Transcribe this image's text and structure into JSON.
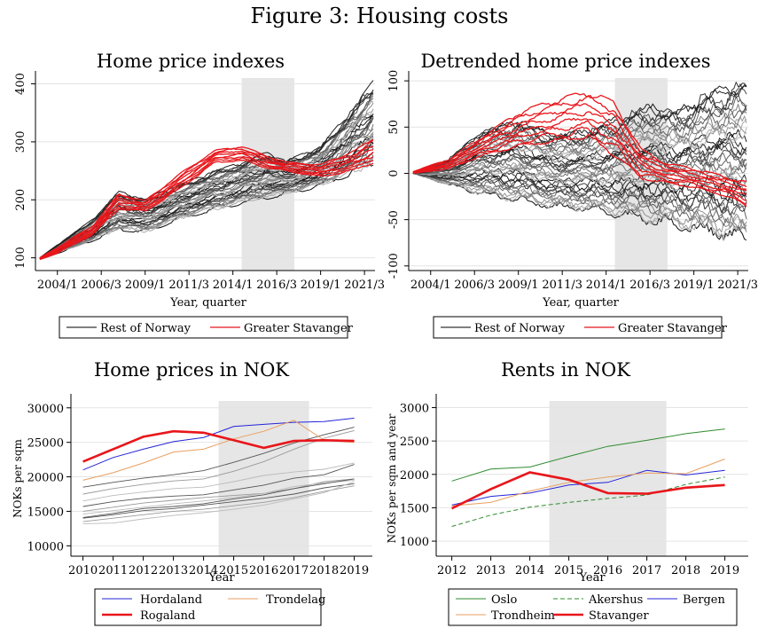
{
  "figure_title": "Figure 3:  Housing costs",
  "colors": {
    "red": "#e8161b",
    "black": "#000000",
    "grey": "#888888",
    "green": "#2e8b2e",
    "blue": "#2424d8",
    "orange": "#e8a060",
    "shade": "#e6e6e6"
  },
  "chart_data": [
    {
      "id": "p1",
      "type": "line",
      "title": "Home price indexes",
      "xlabel": "Year, quarter",
      "ylabel": "",
      "x_ticks": [
        "2004/1",
        "2006/3",
        "2009/1",
        "2011/3",
        "2014/1",
        "2016/3",
        "2019/1",
        "2021/3"
      ],
      "xlim": [
        2002.75,
        2022.1
      ],
      "y_ticks": [
        100,
        200,
        300,
        400
      ],
      "ylim": [
        78,
        410
      ],
      "shaded_period": [
        2014.5,
        2017.5
      ],
      "grid": true,
      "legend": [
        "Rest of Norway",
        "Greater Stavanger"
      ],
      "series_groups": [
        {
          "name": "Rest of Norway",
          "color": "black",
          "count": 40,
          "x": [
            2003,
            2004,
            2006,
            2007.5,
            2009,
            2011,
            2013,
            2014.5,
            2016,
            2017,
            2019,
            2021,
            2022
          ],
          "low": [
            98,
            108,
            130,
            150,
            145,
            168,
            185,
            195,
            205,
            210,
            225,
            250,
            265
          ],
          "high": [
            100,
            122,
            165,
            212,
            200,
            225,
            248,
            262,
            280,
            265,
            290,
            360,
            400
          ]
        },
        {
          "name": "Greater Stavanger",
          "color": "red",
          "count": 8,
          "x": [
            2003,
            2004,
            2006,
            2007.5,
            2009,
            2011,
            2013,
            2014.5,
            2016,
            2017,
            2019,
            2021,
            2022
          ],
          "low": [
            97,
            108,
            140,
            185,
            180,
            220,
            265,
            268,
            255,
            250,
            240,
            252,
            265
          ],
          "high": [
            100,
            118,
            155,
            210,
            198,
            245,
            285,
            292,
            275,
            265,
            260,
            285,
            305
          ]
        }
      ]
    },
    {
      "id": "p2",
      "type": "line",
      "title": "Detrended home price indexes",
      "xlabel": "Year, quarter",
      "ylabel": "",
      "x_ticks": [
        "2004/1",
        "2006/3",
        "2009/1",
        "2011/3",
        "2014/1",
        "2016/3",
        "2019/1",
        "2021/3"
      ],
      "xlim": [
        2002.75,
        2022.1
      ],
      "y_ticks": [
        100,
        50,
        0,
        -50,
        -100
      ],
      "ylim": [
        -105,
        103
      ],
      "shaded_period": [
        2014.5,
        2017.5
      ],
      "grid": true,
      "legend": [
        "Rest of Norway",
        "Greater Stavanger"
      ],
      "series_groups": [
        {
          "name": "Rest of Norway",
          "color": "black",
          "count": 40,
          "x": [
            2003,
            2005,
            2007,
            2009,
            2011,
            2013,
            2015,
            2016.5,
            2018,
            2020,
            2022
          ],
          "low": [
            0,
            -12,
            -22,
            -28,
            -35,
            -38,
            -45,
            -50,
            -55,
            -62,
            -70
          ],
          "high": [
            0,
            15,
            45,
            55,
            40,
            45,
            60,
            70,
            65,
            85,
            95
          ]
        },
        {
          "name": "Greater Stavanger",
          "color": "red",
          "count": 8,
          "x": [
            2003,
            2005,
            2007,
            2009,
            2011,
            2013,
            2014.5,
            2016,
            2017.5,
            2019,
            2021,
            2022
          ],
          "low": [
            0,
            5,
            20,
            30,
            35,
            40,
            20,
            -5,
            -10,
            -15,
            -25,
            -35
          ],
          "high": [
            2,
            15,
            40,
            65,
            78,
            88,
            75,
            25,
            10,
            5,
            -5,
            -10
          ]
        }
      ]
    },
    {
      "id": "p3",
      "type": "line",
      "title": "Home prices in NOK",
      "xlabel": "Year",
      "ylabel": "NOKs per sqm",
      "x": [
        2010,
        2011,
        2012,
        2013,
        2014,
        2015,
        2016,
        2017,
        2018,
        2019
      ],
      "x_ticks": [
        "2010",
        "2011",
        "2012",
        "2013",
        "2014",
        "2015",
        "2016",
        "2017",
        "2018",
        "2019"
      ],
      "xlim": [
        2009.6,
        2019.6
      ],
      "y_ticks": [
        10000,
        15000,
        20000,
        25000,
        30000
      ],
      "ylim": [
        8500,
        31000
      ],
      "shaded_period": [
        2014.5,
        2017.5
      ],
      "grid": true,
      "legend": [
        "Hordaland",
        "Trondelag",
        "Rogaland"
      ],
      "series": [
        {
          "name": "Hordaland",
          "color": "blue",
          "width": 1,
          "values": [
            21000,
            22800,
            24000,
            25100,
            25700,
            27300,
            27600,
            27900,
            28000,
            28500
          ]
        },
        {
          "name": "Trondelag",
          "color": "orange",
          "width": 1,
          "values": [
            19500,
            20600,
            22000,
            23600,
            24000,
            25500,
            26600,
            28200,
            25300,
            25000
          ]
        },
        {
          "name": "Rogaland",
          "color": "red",
          "width": 2.6,
          "values": [
            22200,
            24000,
            25800,
            26600,
            26400,
            25300,
            24200,
            25200,
            25300,
            25200
          ]
        }
      ],
      "background_series": {
        "color": "grey",
        "values": [
          [
            18500,
            19200,
            19800,
            20300,
            20900,
            22100,
            23400,
            24900,
            26100,
            27200
          ],
          [
            17500,
            18300,
            18900,
            19400,
            19700,
            20800,
            22200,
            24000,
            25600,
            26700
          ],
          [
            16500,
            17300,
            17800,
            18300,
            18500,
            19300,
            20200,
            20700,
            21100,
            22000
          ],
          [
            15700,
            16400,
            16900,
            17200,
            17400,
            18100,
            18800,
            19800,
            20300,
            21800
          ],
          [
            15000,
            15600,
            16200,
            16600,
            17000,
            17300,
            17600,
            18300,
            19300,
            19700
          ],
          [
            14600,
            15100,
            15600,
            16100,
            16500,
            17000,
            17600,
            18600,
            19100,
            19500
          ],
          [
            14000,
            14500,
            15100,
            15400,
            15900,
            16400,
            16900,
            17500,
            18400,
            19000
          ],
          [
            13500,
            14000,
            14500,
            15000,
            15300,
            15800,
            16300,
            17000,
            17900,
            18700
          ],
          [
            13200,
            13300,
            13900,
            14400,
            14800,
            15300,
            15900,
            16800,
            17700,
            19300
          ],
          [
            14100,
            14700,
            15400,
            15700,
            16100,
            16800,
            17400,
            18300,
            19000,
            19700
          ]
        ]
      }
    },
    {
      "id": "p4",
      "type": "line",
      "title": "Rents in NOK",
      "xlabel": "Year",
      "ylabel": "NOKs per sqm and year",
      "x": [
        2012,
        2013,
        2014,
        2015,
        2016,
        2017,
        2018,
        2019
      ],
      "x_ticks": [
        "2012",
        "2013",
        "2014",
        "2015",
        "2016",
        "2017",
        "2018",
        "2019"
      ],
      "xlim": [
        2011.6,
        2019.6
      ],
      "y_ticks": [
        1000,
        1500,
        2000,
        2500,
        3000
      ],
      "ylim": [
        775,
        3100
      ],
      "shaded_period": [
        2014.5,
        2017.5
      ],
      "grid": true,
      "legend": [
        "Oslo",
        "Akershus",
        "Bergen",
        "Trondheim",
        "Stavanger"
      ],
      "series": [
        {
          "name": "Oslo",
          "color": "green",
          "width": 1,
          "dash": "",
          "values": [
            1900,
            2080,
            2110,
            2270,
            2420,
            2510,
            2610,
            2680
          ]
        },
        {
          "name": "Akershus",
          "color": "green",
          "width": 1,
          "dash": "5,3",
          "values": [
            1220,
            1390,
            1510,
            1580,
            1640,
            1690,
            1850,
            1960
          ]
        },
        {
          "name": "Bergen",
          "color": "blue",
          "width": 1,
          "dash": "",
          "values": [
            1540,
            1670,
            1720,
            1840,
            1880,
            2060,
            1990,
            2060
          ]
        },
        {
          "name": "Trondheim",
          "color": "orange",
          "width": 1,
          "dash": "",
          "values": [
            1530,
            1580,
            1750,
            1880,
            1960,
            2020,
            2010,
            2230
          ]
        },
        {
          "name": "Stavanger",
          "color": "red",
          "width": 2.6,
          "dash": "",
          "values": [
            1490,
            1780,
            2030,
            1920,
            1720,
            1710,
            1800,
            1840
          ]
        }
      ]
    }
  ]
}
